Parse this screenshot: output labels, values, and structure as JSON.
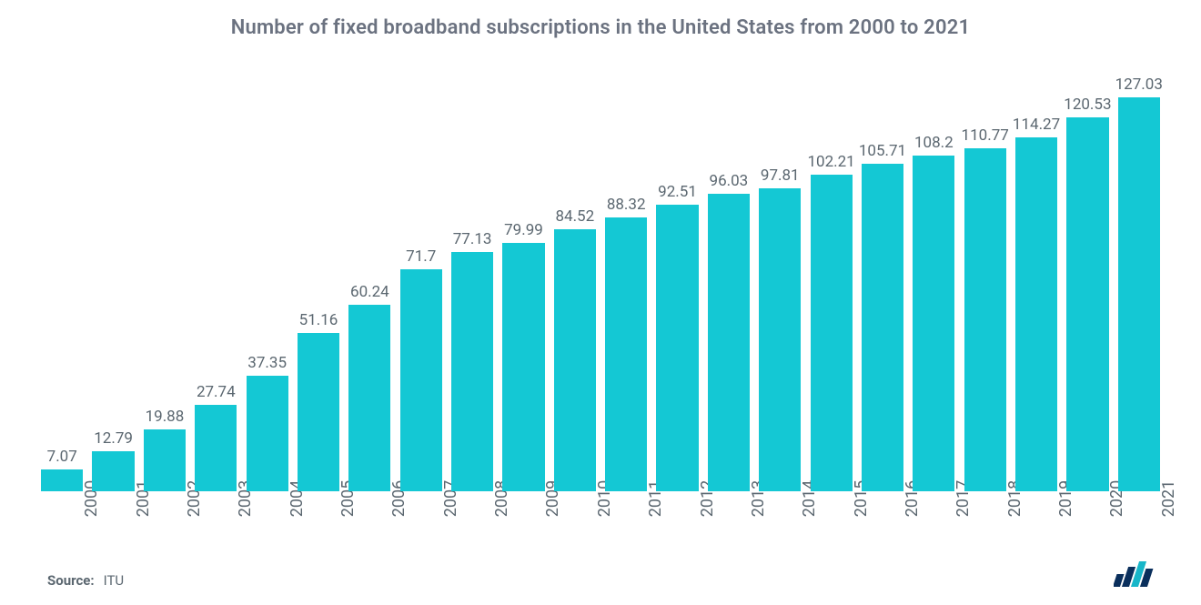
{
  "chart": {
    "type": "bar",
    "title": "Number of fixed broadband subscriptions in the United States from 2000 to 2021",
    "title_color": "#6b7280",
    "title_fontsize": 22,
    "background_color": "#ffffff",
    "bar_color": "#14c8d4",
    "bar_width_pct": 82,
    "value_label_color": "#5b6770",
    "value_label_fontsize": 17,
    "x_label_color": "#5b6770",
    "x_label_fontsize": 18,
    "y_max": 135,
    "categories": [
      "2000",
      "2001",
      "2002",
      "2003",
      "2004",
      "2005",
      "2006",
      "2007",
      "2008",
      "2009",
      "2010",
      "2011",
      "2012",
      "2013",
      "2014",
      "2015",
      "2016",
      "2017",
      "2018",
      "2019",
      "2020",
      "2021"
    ],
    "values": [
      7.07,
      12.79,
      19.88,
      27.74,
      37.35,
      51.16,
      60.24,
      71.7,
      77.13,
      79.99,
      84.52,
      88.32,
      92.51,
      96.03,
      97.81,
      102.21,
      105.71,
      108.2,
      110.77,
      114.27,
      120.53,
      127.03
    ]
  },
  "footer": {
    "source_label": "Source:",
    "source_value": "ITU",
    "label_color": "#5b6770",
    "label_fontsize": 15
  },
  "logo": {
    "name": "mordor-intelligence-logo",
    "bar_colors": [
      "#0a2f5c",
      "#0a2f5c",
      "#17b6c9",
      "#0a2f5c"
    ]
  }
}
